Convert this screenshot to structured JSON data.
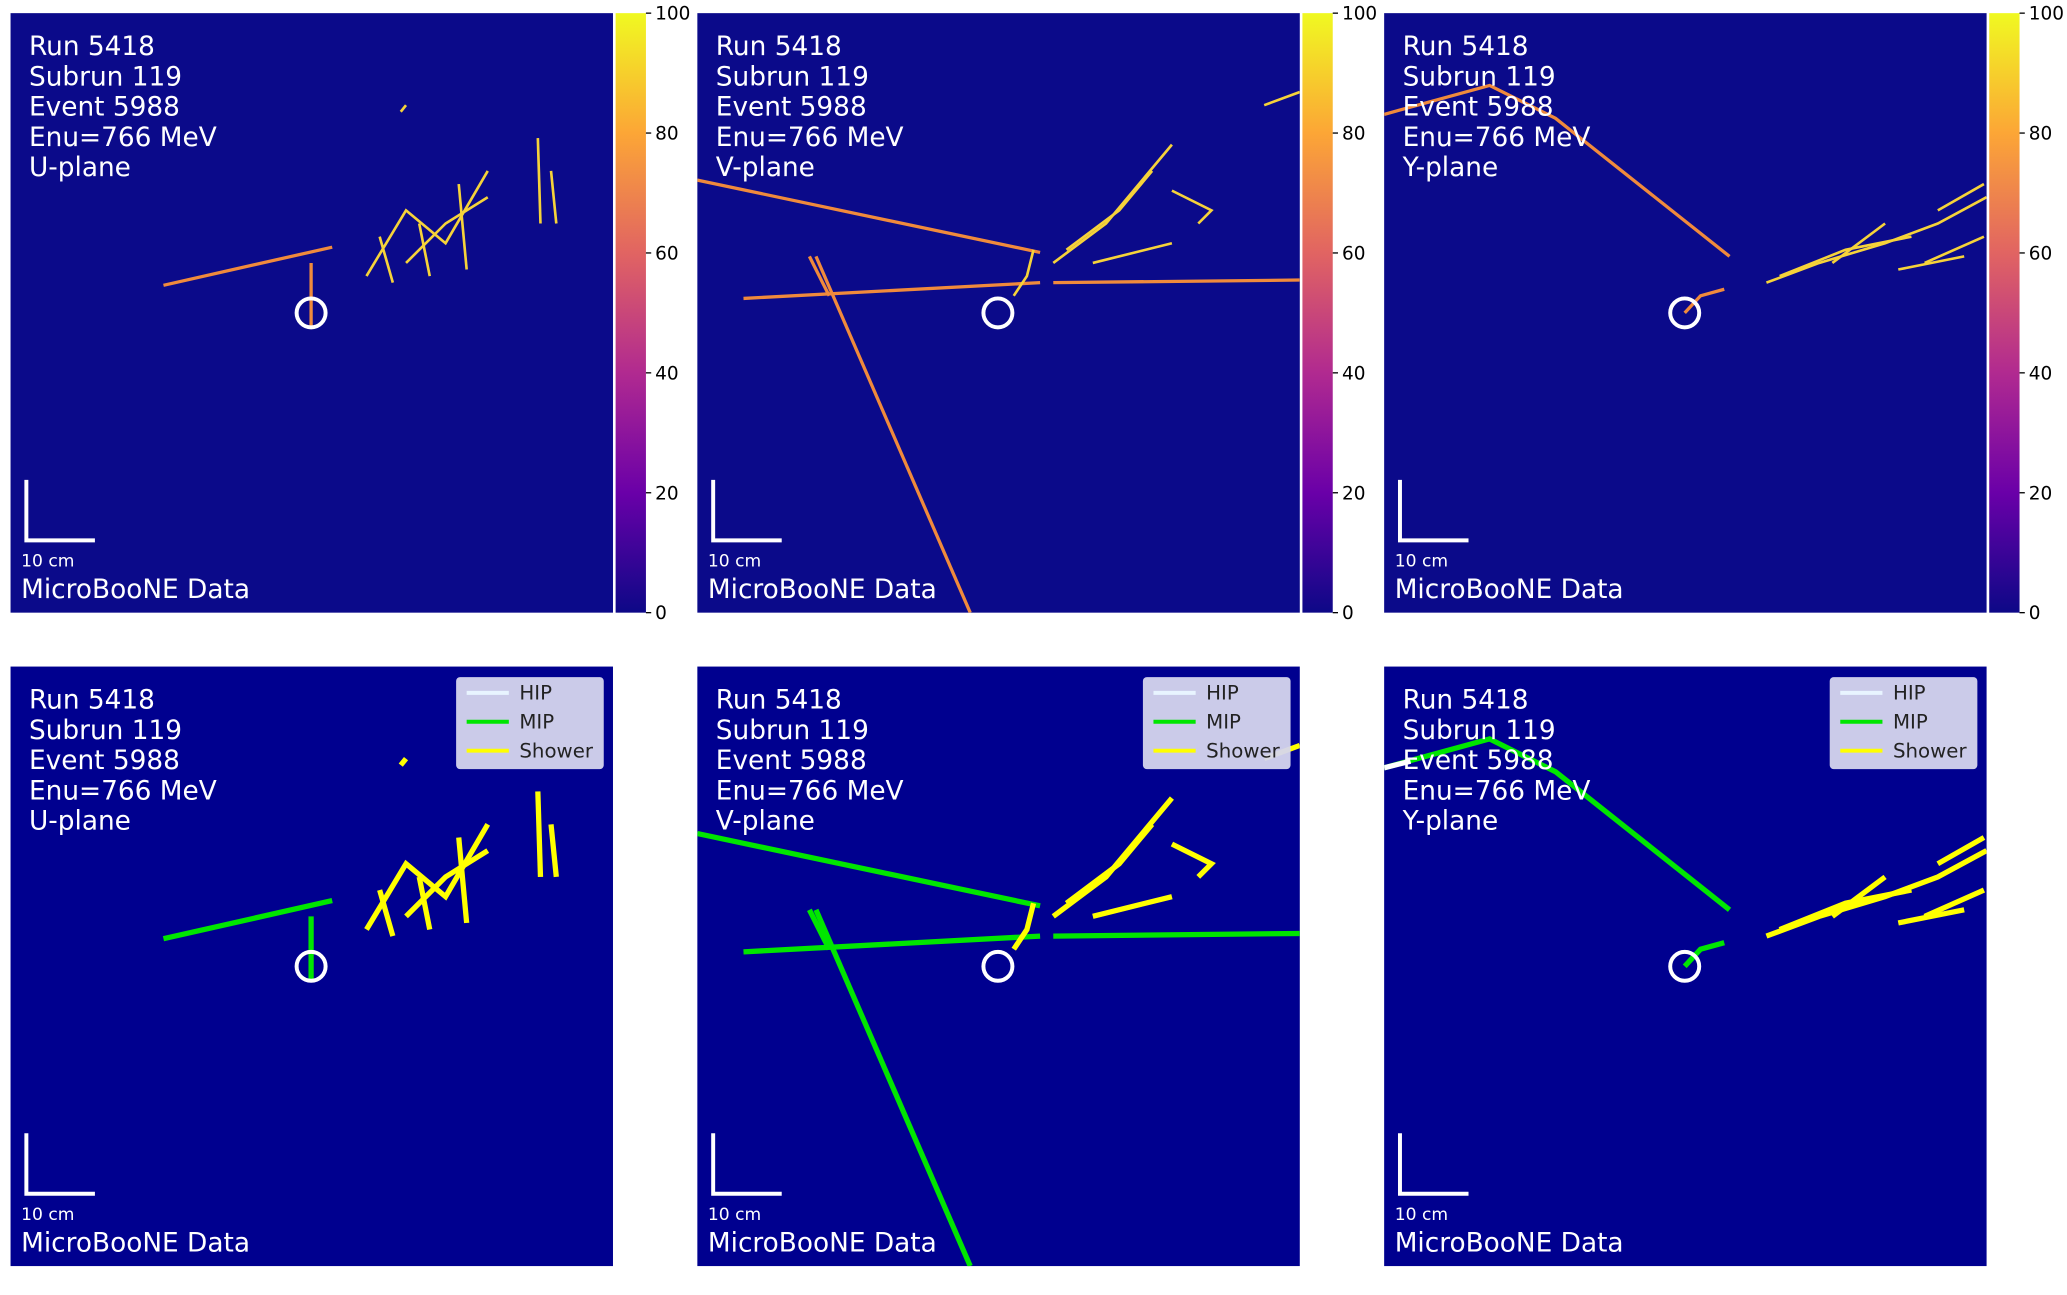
{
  "panels": [
    {
      "lines": [
        "Run 5418",
        "Subrun 119",
        "Event 5988",
        "Enu=766 MeV",
        "U-plane"
      ],
      "scale_label": "10 cm",
      "footer": "MicroBooNE Data",
      "colorbar_ticks": [
        0,
        20,
        40,
        60,
        80,
        100
      ]
    },
    {
      "lines": [
        "Run 5418",
        "Subrun 119",
        "Event 5988",
        "Enu=766 MeV",
        "V-plane"
      ],
      "scale_label": "10 cm",
      "footer": "MicroBooNE Data",
      "colorbar_ticks": [
        0,
        20,
        40,
        60,
        80,
        100
      ]
    },
    {
      "lines": [
        "Run 5418",
        "Subrun 119",
        "Event 5988",
        "Enu=766 MeV",
        "Y-plane"
      ],
      "scale_label": "10 cm",
      "footer": "MicroBooNE Data",
      "colorbar_ticks": [
        0,
        20,
        40,
        60,
        80,
        100
      ]
    },
    {
      "lines": [
        "Run 5418",
        "Subrun 119",
        "Event 5988",
        "Enu=766 MeV",
        "U-plane"
      ],
      "scale_label": "10 cm",
      "footer": "MicroBooNE Data",
      "legend": [
        "HIP",
        "MIP",
        "Shower"
      ]
    },
    {
      "lines": [
        "Run 5418",
        "Subrun 119",
        "Event 5988",
        "Enu=766 MeV",
        "V-plane"
      ],
      "scale_label": "10 cm",
      "footer": "MicroBooNE Data",
      "legend": [
        "HIP",
        "MIP",
        "Shower"
      ]
    },
    {
      "lines": [
        "Run 5418",
        "Subrun 119",
        "Event 5988",
        "Enu=766 MeV",
        "Y-plane"
      ],
      "scale_label": "10 cm",
      "footer": "MicroBooNE Data",
      "legend": [
        "HIP",
        "MIP",
        "Shower"
      ]
    }
  ]
}
